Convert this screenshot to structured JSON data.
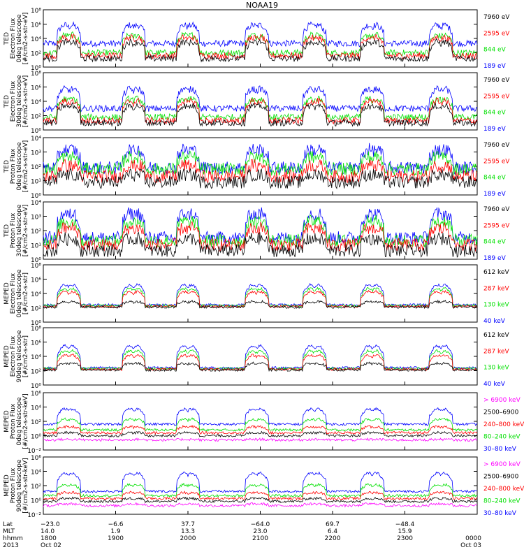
{
  "title": "NOAA19",
  "colors": {
    "black": "#000000",
    "blue": "#0000ff",
    "red": "#ff0000",
    "green": "#00e000",
    "magenta": "#ff00ff"
  },
  "chart_data": [
    {
      "type": "line",
      "instrument": "TED",
      "ylabel_lines": [
        "TED",
        "Electron Flux",
        "0deg telescope",
        "[#/cm2-s-str-eV]"
      ],
      "y_ticks": [
        "10⁰",
        "10²",
        "10⁴",
        "10⁶",
        "10⁸"
      ],
      "ylim_exponent": [
        0,
        8
      ],
      "legend": [
        {
          "label": "7960 eV",
          "color": "black"
        },
        {
          "label": "2595 eV",
          "color": "red"
        },
        {
          "label": "844 eV",
          "color": "green"
        },
        {
          "label": "189 eV",
          "color": "blue"
        }
      ],
      "baseline_exp": [
        1.2,
        1.6,
        2.0,
        3.3
      ],
      "peak_exp": [
        3.9,
        4.6,
        4.9,
        6.3
      ]
    },
    {
      "type": "line",
      "instrument": "TED",
      "ylabel_lines": [
        "TED",
        "Electron Flux",
        "30deg telescope",
        "[#/cm2-s-str-eV]"
      ],
      "y_ticks": [
        "10⁰",
        "10²",
        "10⁴",
        "10⁶",
        "10⁸"
      ],
      "ylim_exponent": [
        0,
        8
      ],
      "legend": [
        {
          "label": "7960 eV",
          "color": "black"
        },
        {
          "label": "2595 eV",
          "color": "red"
        },
        {
          "label": "844 eV",
          "color": "green"
        },
        {
          "label": "189 eV",
          "color": "blue"
        }
      ],
      "baseline_exp": [
        1.0,
        1.3,
        1.8,
        3.0
      ],
      "peak_exp": [
        3.8,
        4.5,
        4.8,
        6.2
      ]
    },
    {
      "type": "line",
      "instrument": "TED",
      "ylabel_lines": [
        "TED",
        "Proton Flux",
        "0deg telescope",
        "[#/cm2-s-str-eV]"
      ],
      "y_ticks": [
        "10⁰",
        "10¹",
        "10²",
        "10³",
        "10⁴"
      ],
      "ylim_exponent": [
        0,
        4
      ],
      "legend": [
        {
          "label": "7960 eV",
          "color": "black"
        },
        {
          "label": "2595 eV",
          "color": "red"
        },
        {
          "label": "844 eV",
          "color": "green"
        },
        {
          "label": "189 eV",
          "color": "blue"
        }
      ],
      "baseline_exp": [
        0.9,
        1.3,
        1.8,
        1.9
      ],
      "peak_exp": [
        1.5,
        2.2,
        2.8,
        3.4
      ]
    },
    {
      "type": "line",
      "instrument": "TED",
      "ylabel_lines": [
        "TED",
        "Proton Flux",
        "30deg telescope",
        "[#/cm2-s-str-eV]"
      ],
      "y_ticks": [
        "10⁰",
        "10¹",
        "10²",
        "10³",
        "10⁴"
      ],
      "ylim_exponent": [
        0,
        4
      ],
      "legend": [
        {
          "label": "7960 eV",
          "color": "black"
        },
        {
          "label": "2595 eV",
          "color": "red"
        },
        {
          "label": "844 eV",
          "color": "green"
        },
        {
          "label": "189 eV",
          "color": "blue"
        }
      ],
      "baseline_exp": [
        0.6,
        1.0,
        1.3,
        1.5
      ],
      "peak_exp": [
        1.6,
        2.4,
        2.9,
        3.5
      ]
    },
    {
      "type": "line",
      "instrument": "MEPED",
      "ylabel_lines": [
        "MEPED",
        "Electron Flux",
        "0deg telescope",
        "[#/cm2-s-str]"
      ],
      "y_ticks": [
        "10⁰",
        "10²",
        "10⁴",
        "10⁶",
        "10⁸"
      ],
      "ylim_exponent": [
        0,
        8
      ],
      "legend": [
        {
          "label": "612 keV",
          "color": "black"
        },
        {
          "label": "287 keV",
          "color": "red"
        },
        {
          "label": "130 keV",
          "color": "green"
        },
        {
          "label": "40 keV",
          "color": "blue"
        }
      ],
      "baseline_exp": [
        2.1,
        2.2,
        2.3,
        2.4
      ],
      "peak_exp": [
        3.0,
        4.6,
        5.1,
        5.7
      ]
    },
    {
      "type": "line",
      "instrument": "MEPED",
      "ylabel_lines": [
        "MEPED",
        "Electron Flux",
        "90deg telescope",
        "[#/cm2-s-str]"
      ],
      "y_ticks": [
        "10⁰",
        "10²",
        "10⁴",
        "10⁶",
        "10⁸"
      ],
      "ylim_exponent": [
        0,
        8
      ],
      "legend": [
        {
          "label": "612 keV",
          "color": "black"
        },
        {
          "label": "287 keV",
          "color": "red"
        },
        {
          "label": "130 keV",
          "color": "green"
        },
        {
          "label": "40 keV",
          "color": "blue"
        }
      ],
      "baseline_exp": [
        2.1,
        2.2,
        2.3,
        2.4
      ],
      "peak_exp": [
        3.2,
        4.5,
        5.2,
        6.0
      ]
    },
    {
      "type": "line",
      "instrument": "MEPED",
      "ylabel_lines": [
        "MEPED",
        "Proton Flux",
        "0deg telescope",
        "[#/cm2-s-str-keV]"
      ],
      "y_ticks": [
        "10⁻²",
        "10⁰",
        "10²",
        "10⁴",
        "10⁶"
      ],
      "ylim_exponent": [
        -2,
        6
      ],
      "legend": [
        {
          "label": "> 6900 keV",
          "color": "magenta"
        },
        {
          "label": "2500–6900",
          "color": "black"
        },
        {
          "label": "240–800 keV",
          "color": "red"
        },
        {
          "label": "80–240 keV",
          "color": "green"
        },
        {
          "label": "30–80 keV",
          "color": "blue"
        }
      ],
      "baseline_exp": [
        -0.6,
        0.0,
        0.4,
        0.8,
        1.6
      ],
      "peak_exp": [
        -0.5,
        0.5,
        1.4,
        2.6,
        4.1
      ]
    },
    {
      "type": "line",
      "instrument": "MEPED",
      "ylabel_lines": [
        "MEPED",
        "Proton Flux",
        "90deg telescope",
        "[#/cm2-s-str-keV]"
      ],
      "y_ticks": [
        "10⁻²",
        "10⁰",
        "10²",
        "10⁴",
        "10⁶"
      ],
      "ylim_exponent": [
        -2,
        6
      ],
      "legend": [
        {
          "label": "> 6900 keV",
          "color": "magenta"
        },
        {
          "label": "2500–6900",
          "color": "black"
        },
        {
          "label": "240–800 keV",
          "color": "red"
        },
        {
          "label": "80–240 keV",
          "color": "green"
        },
        {
          "label": "30–80 keV",
          "color": "blue"
        }
      ],
      "baseline_exp": [
        -0.8,
        -0.2,
        0.2,
        0.6,
        1.2
      ],
      "peak_exp": [
        -0.5,
        0.3,
        1.2,
        2.4,
        4.2
      ]
    }
  ],
  "x_axis": {
    "row_labels": [
      "Lat",
      "MLT",
      "hhmm",
      "2013"
    ],
    "ticks": [
      {
        "lat": "−23.0",
        "mlt": "14.0",
        "hhmm": "1800",
        "date": "Oct 02"
      },
      {
        "lat": "−6.6",
        "mlt": "1.9",
        "hhmm": "1900",
        "date": ""
      },
      {
        "lat": "37.7",
        "mlt": "13.3",
        "hhmm": "2000",
        "date": ""
      },
      {
        "lat": "−64.0",
        "mlt": "23.0",
        "hhmm": "2100",
        "date": ""
      },
      {
        "lat": "69.7",
        "mlt": "6.4",
        "hhmm": "2200",
        "date": ""
      },
      {
        "lat": "−48.4",
        "mlt": "15.9",
        "hhmm": "2300",
        "date": ""
      },
      {
        "lat": "",
        "mlt": "",
        "hhmm": "0000",
        "date": "Oct 03"
      }
    ],
    "pass_centers_hours": [
      0.35,
      1.25,
      2.0,
      2.95,
      3.75,
      4.55,
      5.5
    ]
  }
}
